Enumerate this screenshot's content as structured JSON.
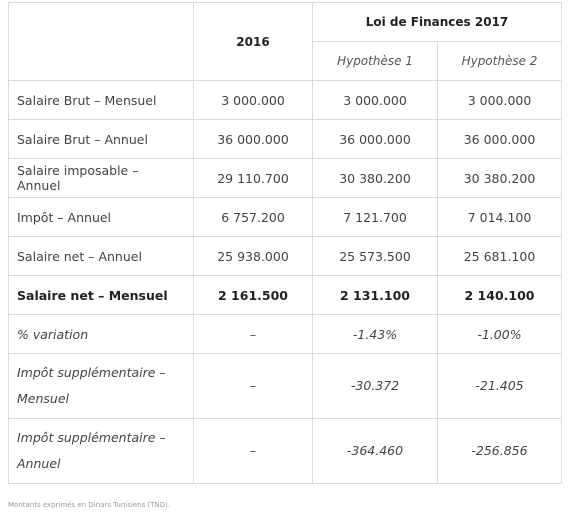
{
  "table": {
    "header": {
      "col_2016": "2016",
      "group": "Loi de Finances 2017",
      "hyp1": "Hypothèse 1",
      "hyp2": "Hypothèse 2"
    },
    "rows": [
      [
        "Salaire Brut – Mensuel",
        "3 000.000",
        "3 000.000",
        "3 000.000"
      ],
      [
        "Salaire Brut – Annuel",
        "36 000.000",
        "36 000.000",
        "36 000.000"
      ],
      [
        "Salaire imposable – Annuel",
        "29 110.700",
        "30 380.200",
        "30 380.200"
      ],
      [
        "Impôt – Annuel",
        "6 757.200",
        "7 121.700",
        "7 014.100"
      ],
      [
        "Salaire net – Annuel",
        "25 938.000",
        "25 573.500",
        "25 681.100"
      ],
      [
        "Salaire net – Mensuel",
        "2 161.500",
        "2 131.100",
        "2 140.100"
      ],
      [
        "% variation",
        "–",
        "-1.43%",
        "-1.00%"
      ],
      [
        "Impôt supplémentaire – Mensuel",
        "–",
        "-30.372",
        "-21.405"
      ],
      [
        "Impôt supplémentaire – Annuel",
        "–",
        "-364.460",
        "-256.856"
      ]
    ]
  },
  "footnote": "Montants exprimés en Dinars Tunisiens (TND)."
}
